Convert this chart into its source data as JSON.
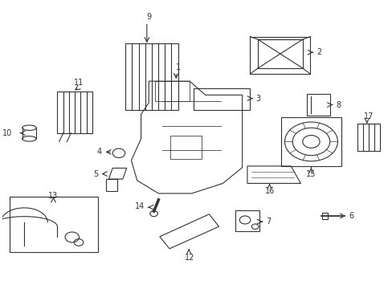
{
  "background_color": "#ffffff",
  "line_color": "#333333",
  "line_width": 0.8
}
